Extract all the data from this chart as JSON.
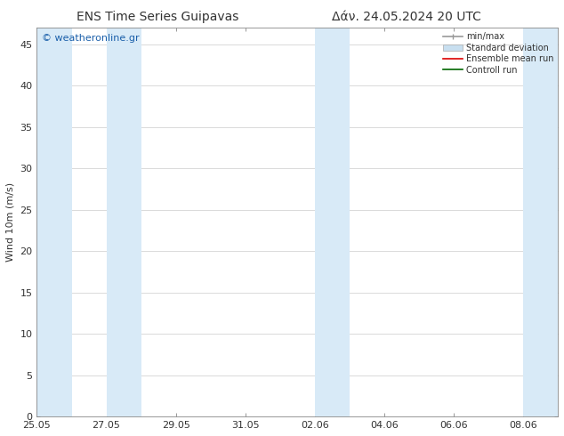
{
  "title_left": "ENS Time Series Guipavas",
  "title_right": "Δάν. 24.05.2024 20 UTC",
  "ylabel": "Wind 10m (m/s)",
  "watermark": "© weatheronline.gr",
  "x_tick_labels": [
    "25.05",
    "27.05",
    "29.05",
    "31.05",
    "02.06",
    "04.06",
    "06.06",
    "08.06"
  ],
  "x_tick_positions": [
    0,
    2,
    4,
    6,
    8,
    10,
    12,
    14
  ],
  "ylim": [
    0,
    47
  ],
  "yticks": [
    0,
    5,
    10,
    15,
    20,
    25,
    30,
    35,
    40,
    45
  ],
  "plot_bg_color": "#ffffff",
  "fig_bg_color": "#ffffff",
  "shaded_bands": [
    {
      "x_start": 0,
      "x_end": 1
    },
    {
      "x_start": 2,
      "x_end": 3
    },
    {
      "x_start": 8,
      "x_end": 9
    },
    {
      "x_start": 14,
      "x_end": 15
    }
  ],
  "band_color": "#d8eaf7",
  "font_color": "#333333",
  "title_fontsize": 10,
  "axis_label_fontsize": 8,
  "tick_fontsize": 8,
  "watermark_color": "#1a5faa",
  "watermark_fontsize": 8,
  "legend_fontsize": 7,
  "xlim": [
    0,
    15
  ],
  "minmax_color": "#999999",
  "std_color": "#c8dff0",
  "std_edge_color": "#aaaaaa",
  "mean_color": "#dd0000",
  "ctrl_color": "#006600"
}
